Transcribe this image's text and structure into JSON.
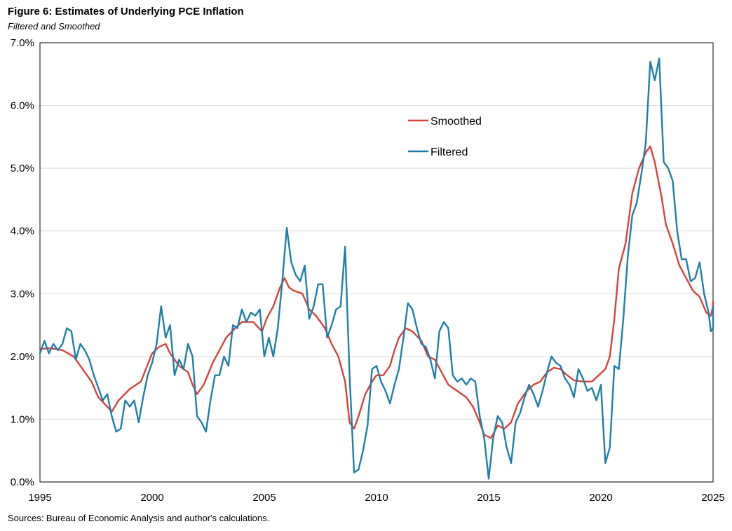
{
  "title": "Figure 6: Estimates of Underlying PCE Inflation",
  "subtitle": "Filtered and Smoothed",
  "source": "Sources: Bureau of Economic Analysis and author's calculations.",
  "colors": {
    "smoothed": "#d9423a",
    "filtered": "#1f7fa6",
    "grid": "#d9d9d9",
    "axis": "#000000"
  },
  "chart_data": {
    "type": "line",
    "title": "Figure 6: Estimates of Underlying PCE Inflation",
    "subtitle": "Filtered and Smoothed",
    "xlabel": "",
    "ylabel": "",
    "xlim": [
      1995,
      2025
    ],
    "ylim": [
      0,
      7
    ],
    "grid": true,
    "legend_position": "upper-middle-right",
    "x_ticks": [
      1995,
      2000,
      2005,
      2010,
      2015,
      2020,
      2025
    ],
    "x_tick_labels": [
      "1995",
      "2000",
      "2005",
      "2010",
      "2015",
      "2020",
      "2025"
    ],
    "y_ticks": [
      0,
      1,
      2,
      3,
      4,
      5,
      6,
      7
    ],
    "y_tick_labels": [
      "0.0%",
      "1.0%",
      "2.0%",
      "3.0%",
      "4.0%",
      "5.0%",
      "6.0%",
      "7.0%"
    ],
    "series": [
      {
        "name": "Smoothed",
        "color": "#d9423a",
        "points": [
          [
            1995.0,
            2.12
          ],
          [
            1995.5,
            2.13
          ],
          [
            1996.0,
            2.1
          ],
          [
            1996.5,
            2.0
          ],
          [
            1997.0,
            1.75
          ],
          [
            1997.3,
            1.6
          ],
          [
            1997.6,
            1.35
          ],
          [
            1998.0,
            1.2
          ],
          [
            1998.2,
            1.12
          ],
          [
            1998.5,
            1.3
          ],
          [
            1999.0,
            1.48
          ],
          [
            1999.5,
            1.6
          ],
          [
            2000.0,
            2.05
          ],
          [
            2000.3,
            2.15
          ],
          [
            2000.6,
            2.2
          ],
          [
            2000.8,
            2.05
          ],
          [
            2001.2,
            1.85
          ],
          [
            2001.6,
            1.75
          ],
          [
            2001.8,
            1.55
          ],
          [
            2002.0,
            1.4
          ],
          [
            2002.3,
            1.55
          ],
          [
            2002.7,
            1.9
          ],
          [
            2003.0,
            2.1
          ],
          [
            2003.3,
            2.3
          ],
          [
            2003.7,
            2.45
          ],
          [
            2004.0,
            2.55
          ],
          [
            2004.5,
            2.55
          ],
          [
            2004.9,
            2.4
          ],
          [
            2005.1,
            2.6
          ],
          [
            2005.4,
            2.8
          ],
          [
            2005.7,
            3.1
          ],
          [
            2005.9,
            3.25
          ],
          [
            2006.1,
            3.1
          ],
          [
            2006.3,
            3.05
          ],
          [
            2006.7,
            3.0
          ],
          [
            2007.0,
            2.75
          ],
          [
            2007.3,
            2.65
          ],
          [
            2007.7,
            2.45
          ],
          [
            2008.0,
            2.2
          ],
          [
            2008.3,
            2.0
          ],
          [
            2008.6,
            1.6
          ],
          [
            2008.8,
            0.95
          ],
          [
            2009.0,
            0.85
          ],
          [
            2009.2,
            1.05
          ],
          [
            2009.5,
            1.4
          ],
          [
            2009.8,
            1.6
          ],
          [
            2010.0,
            1.7
          ],
          [
            2010.3,
            1.7
          ],
          [
            2010.6,
            1.85
          ],
          [
            2010.8,
            2.1
          ],
          [
            2011.0,
            2.3
          ],
          [
            2011.3,
            2.45
          ],
          [
            2011.6,
            2.4
          ],
          [
            2012.0,
            2.25
          ],
          [
            2012.3,
            2.0
          ],
          [
            2012.6,
            1.95
          ],
          [
            2012.9,
            1.75
          ],
          [
            2013.2,
            1.55
          ],
          [
            2013.6,
            1.45
          ],
          [
            2014.0,
            1.35
          ],
          [
            2014.3,
            1.2
          ],
          [
            2014.6,
            0.95
          ],
          [
            2014.8,
            0.75
          ],
          [
            2015.1,
            0.7
          ],
          [
            2015.4,
            0.9
          ],
          [
            2015.7,
            0.85
          ],
          [
            2016.0,
            0.95
          ],
          [
            2016.3,
            1.25
          ],
          [
            2016.7,
            1.45
          ],
          [
            2017.0,
            1.55
          ],
          [
            2017.3,
            1.6
          ],
          [
            2017.6,
            1.75
          ],
          [
            2017.9,
            1.82
          ],
          [
            2018.2,
            1.8
          ],
          [
            2018.5,
            1.7
          ],
          [
            2018.8,
            1.62
          ],
          [
            2019.2,
            1.6
          ],
          [
            2019.6,
            1.6
          ],
          [
            2019.9,
            1.7
          ],
          [
            2020.2,
            1.8
          ],
          [
            2020.4,
            2.0
          ],
          [
            2020.6,
            2.6
          ],
          [
            2020.8,
            3.4
          ],
          [
            2021.1,
            3.8
          ],
          [
            2021.4,
            4.6
          ],
          [
            2021.7,
            5.0
          ],
          [
            2022.0,
            5.25
          ],
          [
            2022.2,
            5.35
          ],
          [
            2022.4,
            5.1
          ],
          [
            2022.7,
            4.55
          ],
          [
            2022.9,
            4.1
          ],
          [
            2023.2,
            3.8
          ],
          [
            2023.5,
            3.45
          ],
          [
            2023.8,
            3.25
          ],
          [
            2024.1,
            3.05
          ],
          [
            2024.4,
            2.95
          ],
          [
            2024.7,
            2.7
          ],
          [
            2024.9,
            2.65
          ],
          [
            2025.0,
            2.8
          ],
          [
            2025.0,
            2.88
          ]
        ]
      },
      {
        "name": "Filtered",
        "color": "#1f7fa6",
        "points": [
          [
            1995.0,
            2.05
          ],
          [
            1995.2,
            2.25
          ],
          [
            1995.4,
            2.05
          ],
          [
            1995.6,
            2.2
          ],
          [
            1995.8,
            2.1
          ],
          [
            1996.0,
            2.2
          ],
          [
            1996.2,
            2.45
          ],
          [
            1996.4,
            2.4
          ],
          [
            1996.6,
            1.95
          ],
          [
            1996.8,
            2.2
          ],
          [
            1997.0,
            2.1
          ],
          [
            1997.2,
            1.95
          ],
          [
            1997.4,
            1.7
          ],
          [
            1997.6,
            1.5
          ],
          [
            1997.8,
            1.3
          ],
          [
            1998.0,
            1.4
          ],
          [
            1998.2,
            1.05
          ],
          [
            1998.4,
            0.8
          ],
          [
            1998.6,
            0.85
          ],
          [
            1998.8,
            1.3
          ],
          [
            1999.0,
            1.2
          ],
          [
            1999.2,
            1.3
          ],
          [
            1999.4,
            0.95
          ],
          [
            1999.6,
            1.35
          ],
          [
            1999.8,
            1.7
          ],
          [
            2000.0,
            1.9
          ],
          [
            2000.2,
            2.2
          ],
          [
            2000.4,
            2.8
          ],
          [
            2000.6,
            2.3
          ],
          [
            2000.8,
            2.5
          ],
          [
            2001.0,
            1.7
          ],
          [
            2001.2,
            1.95
          ],
          [
            2001.4,
            1.8
          ],
          [
            2001.6,
            2.2
          ],
          [
            2001.8,
            2.0
          ],
          [
            2002.0,
            1.05
          ],
          [
            2002.2,
            0.95
          ],
          [
            2002.4,
            0.8
          ],
          [
            2002.6,
            1.3
          ],
          [
            2002.8,
            1.7
          ],
          [
            2003.0,
            1.7
          ],
          [
            2003.2,
            2.0
          ],
          [
            2003.4,
            1.85
          ],
          [
            2003.6,
            2.5
          ],
          [
            2003.8,
            2.45
          ],
          [
            2004.0,
            2.75
          ],
          [
            2004.2,
            2.55
          ],
          [
            2004.4,
            2.7
          ],
          [
            2004.6,
            2.65
          ],
          [
            2004.8,
            2.75
          ],
          [
            2005.0,
            2.0
          ],
          [
            2005.2,
            2.3
          ],
          [
            2005.4,
            2.0
          ],
          [
            2005.6,
            2.45
          ],
          [
            2005.8,
            3.2
          ],
          [
            2006.0,
            4.05
          ],
          [
            2006.2,
            3.5
          ],
          [
            2006.4,
            3.3
          ],
          [
            2006.6,
            3.2
          ],
          [
            2006.8,
            3.45
          ],
          [
            2007.0,
            2.6
          ],
          [
            2007.2,
            2.8
          ],
          [
            2007.4,
            3.15
          ],
          [
            2007.6,
            3.15
          ],
          [
            2007.8,
            2.3
          ],
          [
            2008.0,
            2.5
          ],
          [
            2008.2,
            2.75
          ],
          [
            2008.4,
            2.8
          ],
          [
            2008.6,
            3.75
          ],
          [
            2008.8,
            1.7
          ],
          [
            2009.0,
            0.15
          ],
          [
            2009.2,
            0.2
          ],
          [
            2009.4,
            0.5
          ],
          [
            2009.6,
            0.9
          ],
          [
            2009.8,
            1.8
          ],
          [
            2010.0,
            1.85
          ],
          [
            2010.2,
            1.6
          ],
          [
            2010.4,
            1.45
          ],
          [
            2010.6,
            1.25
          ],
          [
            2010.8,
            1.55
          ],
          [
            2011.0,
            1.8
          ],
          [
            2011.2,
            2.3
          ],
          [
            2011.4,
            2.85
          ],
          [
            2011.6,
            2.75
          ],
          [
            2011.8,
            2.45
          ],
          [
            2012.0,
            2.2
          ],
          [
            2012.2,
            2.15
          ],
          [
            2012.4,
            1.95
          ],
          [
            2012.6,
            1.65
          ],
          [
            2012.8,
            2.4
          ],
          [
            2013.0,
            2.55
          ],
          [
            2013.2,
            2.45
          ],
          [
            2013.4,
            1.7
          ],
          [
            2013.6,
            1.6
          ],
          [
            2013.8,
            1.65
          ],
          [
            2014.0,
            1.55
          ],
          [
            2014.2,
            1.65
          ],
          [
            2014.4,
            1.6
          ],
          [
            2014.6,
            1.05
          ],
          [
            2014.8,
            0.7
          ],
          [
            2015.0,
            0.05
          ],
          [
            2015.2,
            0.7
          ],
          [
            2015.4,
            1.05
          ],
          [
            2015.6,
            0.95
          ],
          [
            2015.8,
            0.55
          ],
          [
            2016.0,
            0.3
          ],
          [
            2016.2,
            0.95
          ],
          [
            2016.4,
            1.1
          ],
          [
            2016.6,
            1.35
          ],
          [
            2016.8,
            1.55
          ],
          [
            2017.0,
            1.4
          ],
          [
            2017.2,
            1.2
          ],
          [
            2017.4,
            1.45
          ],
          [
            2017.6,
            1.75
          ],
          [
            2017.8,
            2.0
          ],
          [
            2018.0,
            1.9
          ],
          [
            2018.2,
            1.85
          ],
          [
            2018.4,
            1.65
          ],
          [
            2018.6,
            1.55
          ],
          [
            2018.8,
            1.35
          ],
          [
            2019.0,
            1.8
          ],
          [
            2019.2,
            1.65
          ],
          [
            2019.4,
            1.45
          ],
          [
            2019.6,
            1.5
          ],
          [
            2019.8,
            1.3
          ],
          [
            2020.0,
            1.55
          ],
          [
            2020.2,
            0.3
          ],
          [
            2020.4,
            0.55
          ],
          [
            2020.6,
            1.85
          ],
          [
            2020.8,
            1.8
          ],
          [
            2021.0,
            2.6
          ],
          [
            2021.2,
            3.6
          ],
          [
            2021.4,
            4.25
          ],
          [
            2021.6,
            4.45
          ],
          [
            2021.8,
            4.9
          ],
          [
            2022.0,
            5.4
          ],
          [
            2022.2,
            6.7
          ],
          [
            2022.4,
            6.4
          ],
          [
            2022.6,
            6.75
          ],
          [
            2022.8,
            5.1
          ],
          [
            2023.0,
            5.0
          ],
          [
            2023.2,
            4.8
          ],
          [
            2023.4,
            4.0
          ],
          [
            2023.6,
            3.55
          ],
          [
            2023.8,
            3.55
          ],
          [
            2024.0,
            3.2
          ],
          [
            2024.2,
            3.25
          ],
          [
            2024.4,
            3.5
          ],
          [
            2024.6,
            3.0
          ],
          [
            2024.8,
            2.7
          ],
          [
            2024.9,
            2.4
          ],
          [
            2025.0,
            2.45
          ],
          [
            2025.0,
            2.8
          ]
        ]
      }
    ]
  }
}
